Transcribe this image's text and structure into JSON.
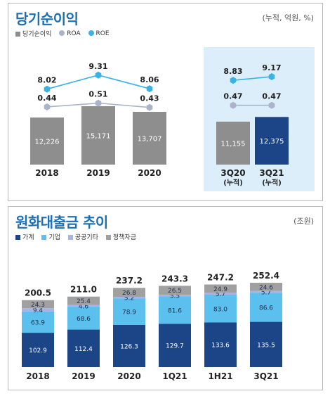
{
  "chart_data": [
    {
      "type": "bar",
      "title": "당기순이익",
      "unit": "(누적, 억원, %)",
      "legend": [
        "당기순이익",
        "ROA",
        "ROE"
      ],
      "categories": [
        "2018",
        "2019",
        "2020",
        "3Q20\n(누적)",
        "3Q21\n(누적)"
      ],
      "series": [
        {
          "name": "당기순이익",
          "values": [
            12226,
            15171,
            13707,
            11155,
            12375
          ],
          "labels": [
            "12,226",
            "15,171",
            "13,707",
            "11,155",
            "12,375"
          ]
        },
        {
          "name": "ROA",
          "values": [
            0.44,
            0.51,
            0.43,
            0.47,
            0.47
          ],
          "labels": [
            "0.44",
            "0.51",
            "0.43",
            "0.47",
            "0.47"
          ]
        },
        {
          "name": "ROE",
          "values": [
            8.02,
            9.31,
            8.06,
            8.83,
            9.17
          ],
          "labels": [
            "8.02",
            "9.31",
            "8.06",
            "8.83",
            "9.17"
          ]
        }
      ],
      "highlight_categories": [
        "3Q20\n(누적)",
        "3Q21\n(누적)"
      ],
      "colors": {
        "bar_gray": "#8e8e8e",
        "bar_highlight": "#1b4586",
        "roa": "#a9b4c8",
        "roe": "#39b3e6",
        "highlight_bg": "#dceefa"
      }
    },
    {
      "type": "bar",
      "stacked": true,
      "title": "원화대출금 추이",
      "unit": "(조원)",
      "categories": [
        "2018",
        "2019",
        "2020",
        "1Q21",
        "1H21",
        "3Q21"
      ],
      "totals": [
        "200.5",
        "211.0",
        "237.2",
        "243.3",
        "247.2",
        "252.4"
      ],
      "series": [
        {
          "name": "가계",
          "values": [
            102.9,
            112.4,
            126.3,
            129.7,
            133.6,
            135.5
          ],
          "color": "#1b4586"
        },
        {
          "name": "기업",
          "values": [
            63.9,
            68.6,
            78.9,
            81.6,
            83.0,
            86.6
          ],
          "color": "#5bc0ee"
        },
        {
          "name": "공공기타",
          "values": [
            9.4,
            4.6,
            5.2,
            5.5,
            5.7,
            5.7
          ],
          "color": "#a6b5e6"
        },
        {
          "name": "정책자금",
          "values": [
            24.3,
            25.4,
            26.8,
            26.5,
            24.9,
            24.6
          ],
          "color": "#a0a0a0"
        }
      ]
    }
  ]
}
